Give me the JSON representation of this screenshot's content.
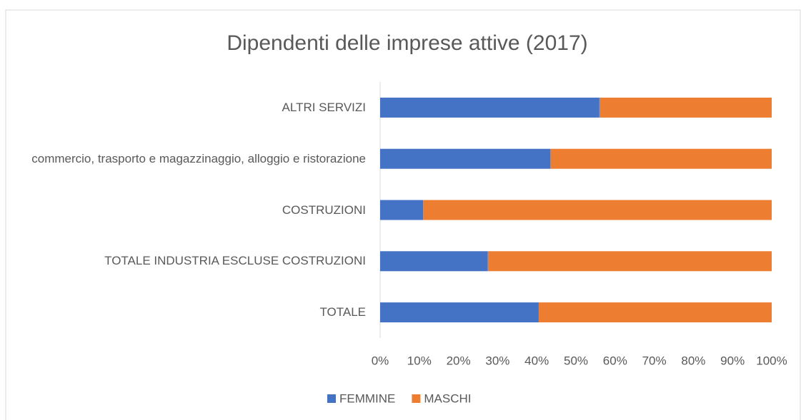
{
  "chart_data": {
    "type": "bar",
    "orientation": "horizontal",
    "stacked": true,
    "title": "Dipendenti delle imprese attive (2017)",
    "categories": [
      "ALTRI SERVIZI",
      "commercio, trasporto e magazzinaggio, alloggio e ristorazione",
      "COSTRUZIONI",
      "TOTALE INDUSTRIA ESCLUSE COSTRUZIONI",
      "TOTALE"
    ],
    "series": [
      {
        "name": "FEMMINE",
        "color": "#4472c4",
        "values": [
          56,
          43.5,
          11,
          27.5,
          40.5
        ]
      },
      {
        "name": "MASCHI",
        "color": "#ed7d31",
        "values": [
          44,
          56.5,
          89,
          72.5,
          59.5
        ]
      }
    ],
    "xlim": [
      0,
      100
    ],
    "xticks": [
      {
        "value": 0,
        "label": "0%"
      },
      {
        "value": 10,
        "label": "10%"
      },
      {
        "value": 20,
        "label": "20%"
      },
      {
        "value": 30,
        "label": "30%"
      },
      {
        "value": 40,
        "label": "40%"
      },
      {
        "value": 50,
        "label": "50%"
      },
      {
        "value": 60,
        "label": "60%"
      },
      {
        "value": 70,
        "label": "70%"
      },
      {
        "value": 80,
        "label": "80%"
      },
      {
        "value": 90,
        "label": "90%"
      },
      {
        "value": 100,
        "label": "100%"
      }
    ],
    "grid": false,
    "legend": "bottom"
  }
}
